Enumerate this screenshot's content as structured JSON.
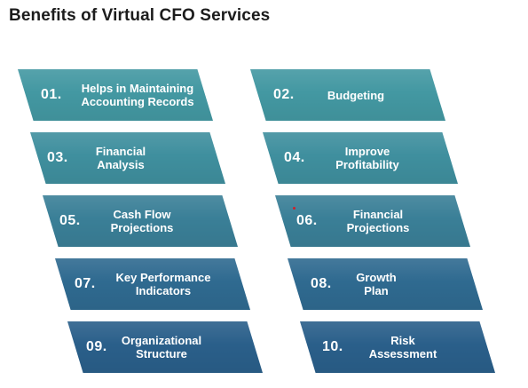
{
  "title": "Benefits of Virtual CFO Services",
  "items": [
    {
      "number": "01.",
      "label": "Helps in Maintaining\nAccounting Records",
      "color": "#4398a2"
    },
    {
      "number": "02.",
      "label": "Budgeting",
      "color": "#4398a2"
    },
    {
      "number": "03.",
      "label": "Financial\nAnalysis",
      "color": "#3f8f9e"
    },
    {
      "number": "04.",
      "label": "Improve\nProfitability",
      "color": "#3f8f9e"
    },
    {
      "number": "05.",
      "label": "Cash Flow\nProjections",
      "color": "#3a7f97"
    },
    {
      "number": "06.",
      "label": "Financial\nProjections",
      "color": "#3a7f97"
    },
    {
      "number": "07.",
      "label": "Key Performance\nIndicators",
      "color": "#2f6a90"
    },
    {
      "number": "08.",
      "label": "Growth\nPlan",
      "color": "#2f6a90"
    },
    {
      "number": "09.",
      "label": "Organizational\nStructure",
      "color": "#2a5f8a"
    },
    {
      "number": "10.",
      "label": "Risk\nAssessment",
      "color": "#2a5f8a"
    }
  ]
}
